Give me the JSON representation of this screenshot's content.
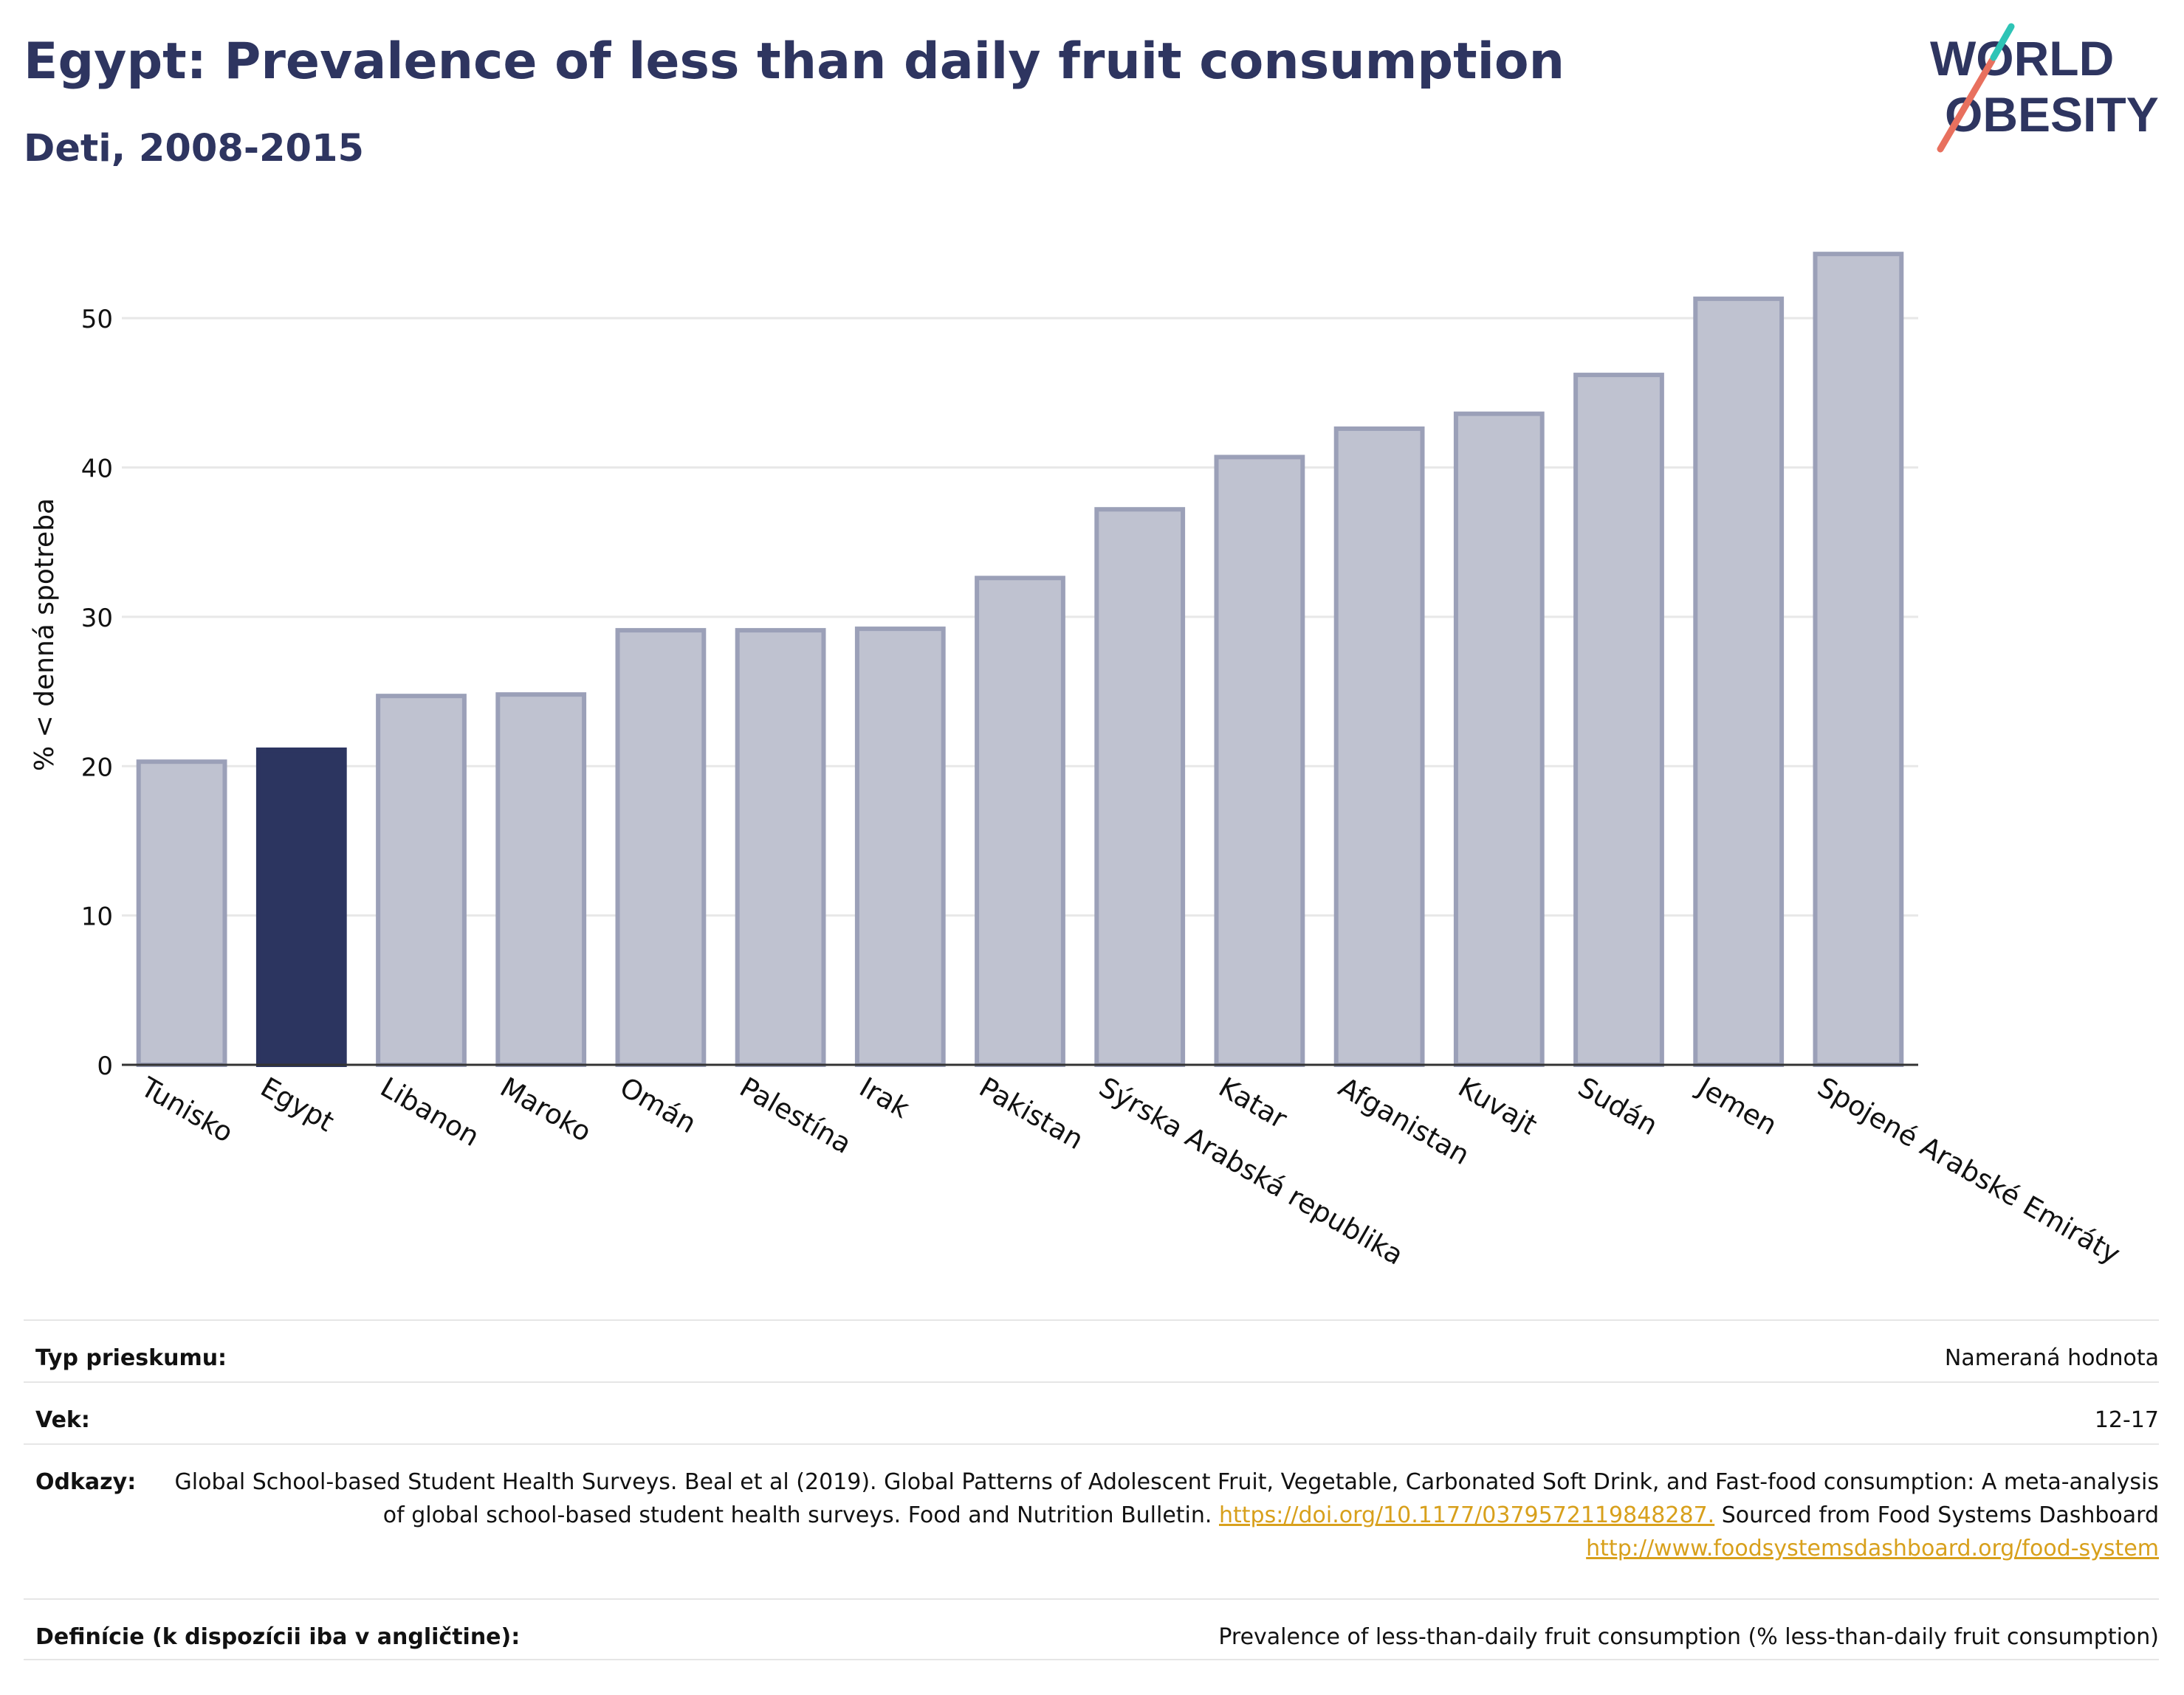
{
  "header": {
    "title": "Egypt: Prevalence of less than daily fruit consumption",
    "subtitle": "Deti, 2008-2015"
  },
  "logo": {
    "line1": "WORLD",
    "line2": "OBESITY",
    "icon": "world-obesity-logo-icon",
    "colors": {
      "text": "#2e3560",
      "slash_red": "#e8705e",
      "slash_teal": "#2ec4b6"
    }
  },
  "colors": {
    "bar": "#bfc2d0",
    "bar_edge": "#9ba0b8",
    "highlight": "#2c3560",
    "grid": "#e8e8e8",
    "axis": "#333333"
  },
  "chart_data": {
    "type": "bar",
    "ylabel": "% < denná spotreba",
    "xlabel": "",
    "ylim": [
      0,
      55
    ],
    "yticks": [
      0,
      10,
      20,
      30,
      40,
      50
    ],
    "grid": true,
    "highlight": "Egypt",
    "categories": [
      "Tunisko",
      "Egypt",
      "Libanon",
      "Maroko",
      "Omán",
      "Palestína",
      "Irak",
      "Pakistan",
      "Sýrska Arabská republika",
      "Katar",
      "Afganistan",
      "Kuvajt",
      "Sudán",
      "Jemen",
      "Spojené Arabské Emiráty"
    ],
    "values": [
      20.3,
      21.1,
      24.7,
      24.8,
      29.1,
      29.1,
      29.2,
      32.6,
      37.2,
      40.7,
      42.6,
      43.6,
      46.2,
      51.3,
      54.3
    ]
  },
  "info": {
    "survey_type_label": "Typ prieskumu:",
    "survey_type_value": "Nameraná hodnota",
    "age_label": "Vek:",
    "age_value": "12-17",
    "references_label": "Odkazy:",
    "references_text_1": "Global School-based Student Health Surveys. Beal et al (2019). Global Patterns of Adolescent Fruit, Vegetable, Carbonated Soft Drink, and Fast-food consumption: A meta-analysis of global school-based student health surveys. Food and Nutrition Bulletin.",
    "references_link_1": "https://doi.org/10.1177/0379572119848287.",
    "references_text_2": "Sourced from Food Systems Dashboard",
    "references_link_2": "http://www.foodsystemsdashboard.org/food-system",
    "definition_label": "Definície (k dispozícii iba v angličtine):",
    "definition_value": "Prevalence of less-than-daily fruit consumption (% less-than-daily fruit consumption)"
  }
}
